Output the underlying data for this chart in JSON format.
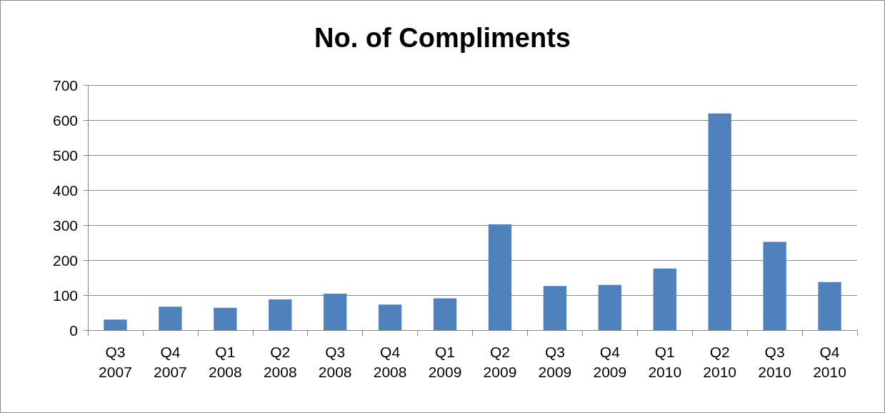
{
  "chart_data": {
    "type": "bar",
    "title": "No. of Compliments",
    "categories": [
      "Q3\n2007",
      "Q4\n2007",
      "Q1\n2008",
      "Q2\n2008",
      "Q3\n2008",
      "Q4\n2008",
      "Q1\n2009",
      "Q2\n2009",
      "Q3\n2009",
      "Q4\n2009",
      "Q1\n2010",
      "Q2\n2010",
      "Q3\n2010",
      "Q4\n2010"
    ],
    "values": [
      30,
      67,
      64,
      88,
      104,
      73,
      91,
      302,
      126,
      129,
      176,
      619,
      252,
      137
    ],
    "color": "#4f81bd",
    "ylim": [
      0,
      700
    ],
    "yticks": [
      0,
      100,
      200,
      300,
      400,
      500,
      600,
      700
    ],
    "grid": "y"
  }
}
